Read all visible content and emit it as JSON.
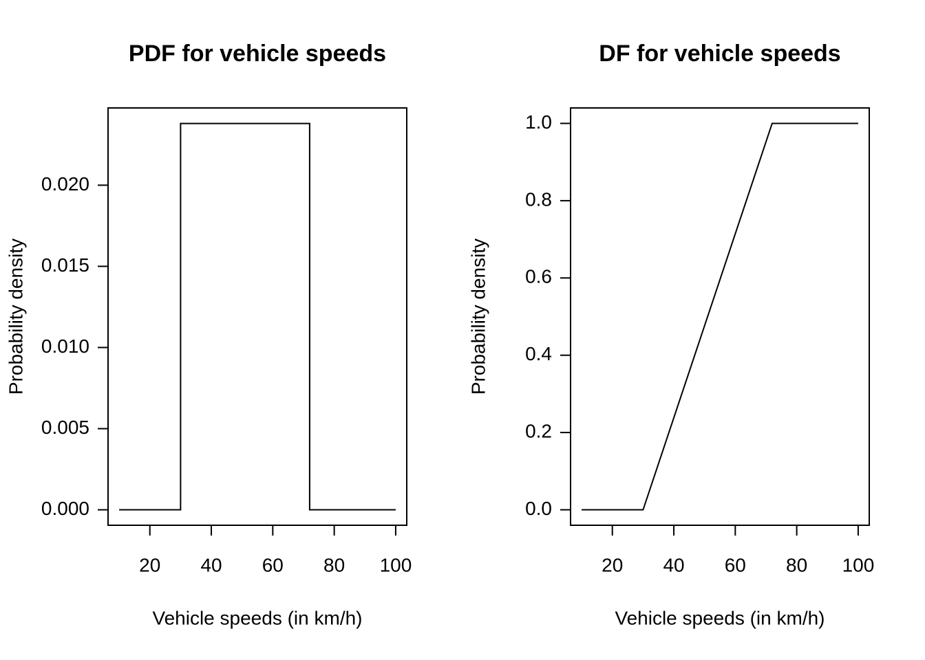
{
  "chart_data": [
    {
      "type": "line",
      "title": "PDF for vehicle speeds",
      "xlabel": "Vehicle speeds (in km/h)",
      "ylabel": "Probability density",
      "x": [
        10,
        30,
        30,
        72,
        72,
        100
      ],
      "values": [
        0,
        0,
        0.0238,
        0.0238,
        0,
        0
      ],
      "color": "#000000",
      "xlim": [
        6.4,
        103.6
      ],
      "xticks": [
        20,
        40,
        60,
        80,
        100
      ],
      "ylim": [
        -0.000952,
        0.02476
      ],
      "yticks": [
        {
          "value": 0,
          "label": "0.000"
        },
        0.005,
        {
          "value": 0.01,
          "label": "0.010"
        },
        0.015,
        {
          "value": 0.02,
          "label": "0.020"
        }
      ]
    },
    {
      "type": "line",
      "title": "DF for vehicle speeds",
      "xlabel": "Vehicle speeds (in km/h)",
      "ylabel": "Probability density",
      "x": [
        10,
        30,
        72,
        100
      ],
      "values": [
        0,
        0,
        1,
        1
      ],
      "color": "#000000",
      "xlim": [
        6.4,
        103.6
      ],
      "xticks": [
        20,
        40,
        60,
        80,
        100
      ],
      "ylim": [
        -0.04,
        1.04
      ],
      "yticks": [
        {
          "value": 0,
          "label": "0.0"
        },
        0.2,
        0.4,
        0.6,
        0.8,
        {
          "value": 1,
          "label": "1.0"
        }
      ]
    }
  ]
}
